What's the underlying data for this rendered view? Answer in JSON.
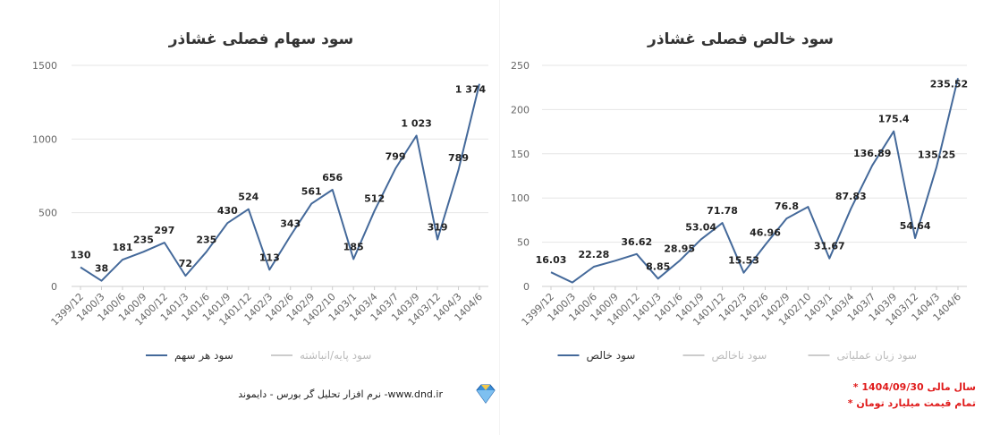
{
  "chart_data": [
    {
      "type": "line",
      "title": "سود سهام فصلی غشاذر",
      "categories": [
        "1399/12",
        "1400/3",
        "1400/6",
        "1400/9",
        "1400/12",
        "1401/3",
        "1401/6",
        "1401/9",
        "1401/12",
        "1402/3",
        "1402/6",
        "1402/9",
        "1402/10",
        "1403/1",
        "1403/4",
        "1403/7",
        "1403/9",
        "1403/12",
        "1404/3",
        "1404/6"
      ],
      "series": [
        {
          "name": "سود هر سهم",
          "color": "#44699a",
          "values": [
            130,
            38,
            181,
            235,
            297,
            72,
            235,
            430,
            524,
            113,
            343,
            561,
            656,
            185,
            512,
            799,
            1023,
            319,
            789,
            1374
          ]
        }
      ],
      "value_labels": [
        "130",
        "38",
        "181",
        "235",
        "297",
        "72",
        "235",
        "430",
        "524",
        "113",
        "343",
        "561",
        "656",
        "185",
        "512",
        "799",
        "1 023",
        "319",
        "789",
        "1 374"
      ],
      "y_ticks": [
        0,
        500,
        1000,
        1500
      ],
      "ylim": [
        0,
        1500
      ],
      "legend": [
        {
          "label": "سود هر سهم",
          "active": true,
          "color": "#44699a"
        },
        {
          "label": "سود پایه/انباشته",
          "active": false,
          "color": "#cccccc"
        }
      ],
      "xlabel": "",
      "ylabel": "",
      "grid": true,
      "legend_position": "bottom"
    },
    {
      "type": "line",
      "title": "سود خالص فصلی غشاذر",
      "categories": [
        "1399/12",
        "1400/3",
        "1400/6",
        "1400/9",
        "1400/12",
        "1401/3",
        "1401/6",
        "1401/9",
        "1401/12",
        "1402/3",
        "1402/6",
        "1402/9",
        "1402/10",
        "1403/1",
        "1403/4",
        "1403/7",
        "1403/9",
        "1403/12",
        "1404/3",
        "1404/6"
      ],
      "series": [
        {
          "name": "سود خالص",
          "color": "#44699a",
          "values": [
            16.03,
            4.5,
            22.28,
            29,
            36.62,
            8.85,
            28.95,
            53.04,
            71.78,
            15.53,
            46.96,
            76.8,
            90,
            31.67,
            87.83,
            136.89,
            175.4,
            54.64,
            135.25,
            235.52
          ]
        }
      ],
      "value_labels": [
        "16.03",
        "",
        "22.28",
        "",
        "36.62",
        "8.85",
        "28.95",
        "53.04",
        "71.78",
        "15.53",
        "46.96",
        "76.8",
        "",
        "31.67",
        "87.83",
        "136.89",
        "175.4",
        "54.64",
        "135.25",
        "235.52"
      ],
      "y_ticks": [
        0,
        50,
        100,
        150,
        200,
        250
      ],
      "ylim": [
        0,
        250
      ],
      "legend": [
        {
          "label": "سود خالص",
          "active": true,
          "color": "#44699a"
        },
        {
          "label": "سود ناخالص",
          "active": false,
          "color": "#cccccc"
        },
        {
          "label": "سود زیان عملیاتی",
          "active": false,
          "color": "#cccccc"
        }
      ],
      "xlabel": "",
      "ylabel": "",
      "grid": true,
      "legend_position": "bottom"
    }
  ],
  "footer": {
    "software_text": "نرم افزار تحلیل گر بورس - دایموند -www.dnd.ir",
    "logo_icon": "diamond-icon",
    "notes": [
      "* سال مالی 1404/09/30",
      "* تمام قیمت میلیارد تومان"
    ]
  }
}
